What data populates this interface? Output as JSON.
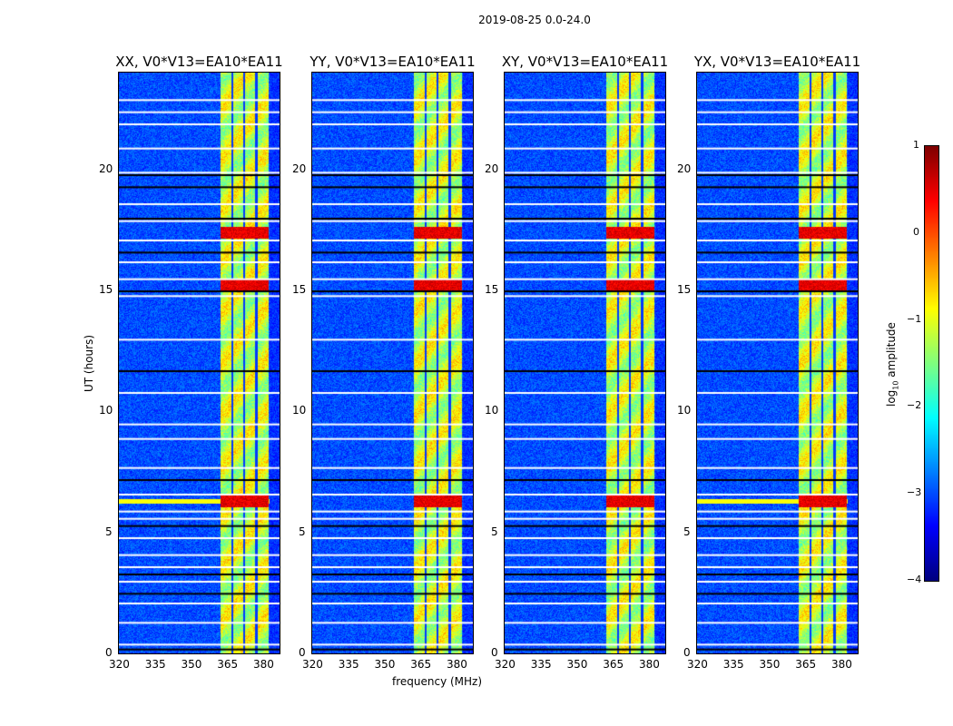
{
  "chart_data": {
    "type": "heatmap",
    "suptitle": "2019-08-25 0.0-24.0",
    "xlabel": "frequency (MHz)",
    "ylabel": "UT (hours)",
    "xlim": [
      320,
      386.8
    ],
    "ylim": [
      0,
      24
    ],
    "xticks": [
      "320",
      "335",
      "350",
      "365",
      "380"
    ],
    "yticks": [
      "0",
      "5",
      "10",
      "15",
      "20"
    ],
    "panels": [
      {
        "title": "XX, V0*V13=EA10*EA11"
      },
      {
        "title": "YY, V0*V13=EA10*EA11"
      },
      {
        "title": "XY, V0*V13=EA10*EA11"
      },
      {
        "title": "YX, V0*V13=EA10*EA11"
      }
    ],
    "rfi_band_mhz": [
      362,
      382
    ],
    "channel_gaps_mhz": [
      367,
      372,
      377
    ],
    "flagged_hours_white": [
      0.4,
      1.3,
      2.1,
      3.0,
      3.6,
      4.1,
      4.8,
      5.6,
      5.9,
      6.6,
      7.7,
      8.9,
      9.5,
      10.8,
      13.0,
      14.8,
      15.5,
      16.2,
      17.1,
      17.9,
      18.6,
      19.9,
      20.9,
      21.9,
      22.4,
      22.9
    ],
    "dark_hours": [
      0.2,
      2.5,
      3.3,
      5.3,
      7.2,
      11.7,
      15.0,
      16.6,
      18.0,
      19.3,
      19.8
    ],
    "strong_rfi_hours": [
      6.3,
      15.2,
      17.4
    ],
    "colorbar": {
      "label": "log10 amplitude",
      "label_main": "log",
      "label_sub": "10",
      "label_rest": " amplitude",
      "range": [
        -4,
        1
      ],
      "ticks": [
        "1",
        "0",
        "−1",
        "−2",
        "−3",
        "−4"
      ]
    }
  }
}
